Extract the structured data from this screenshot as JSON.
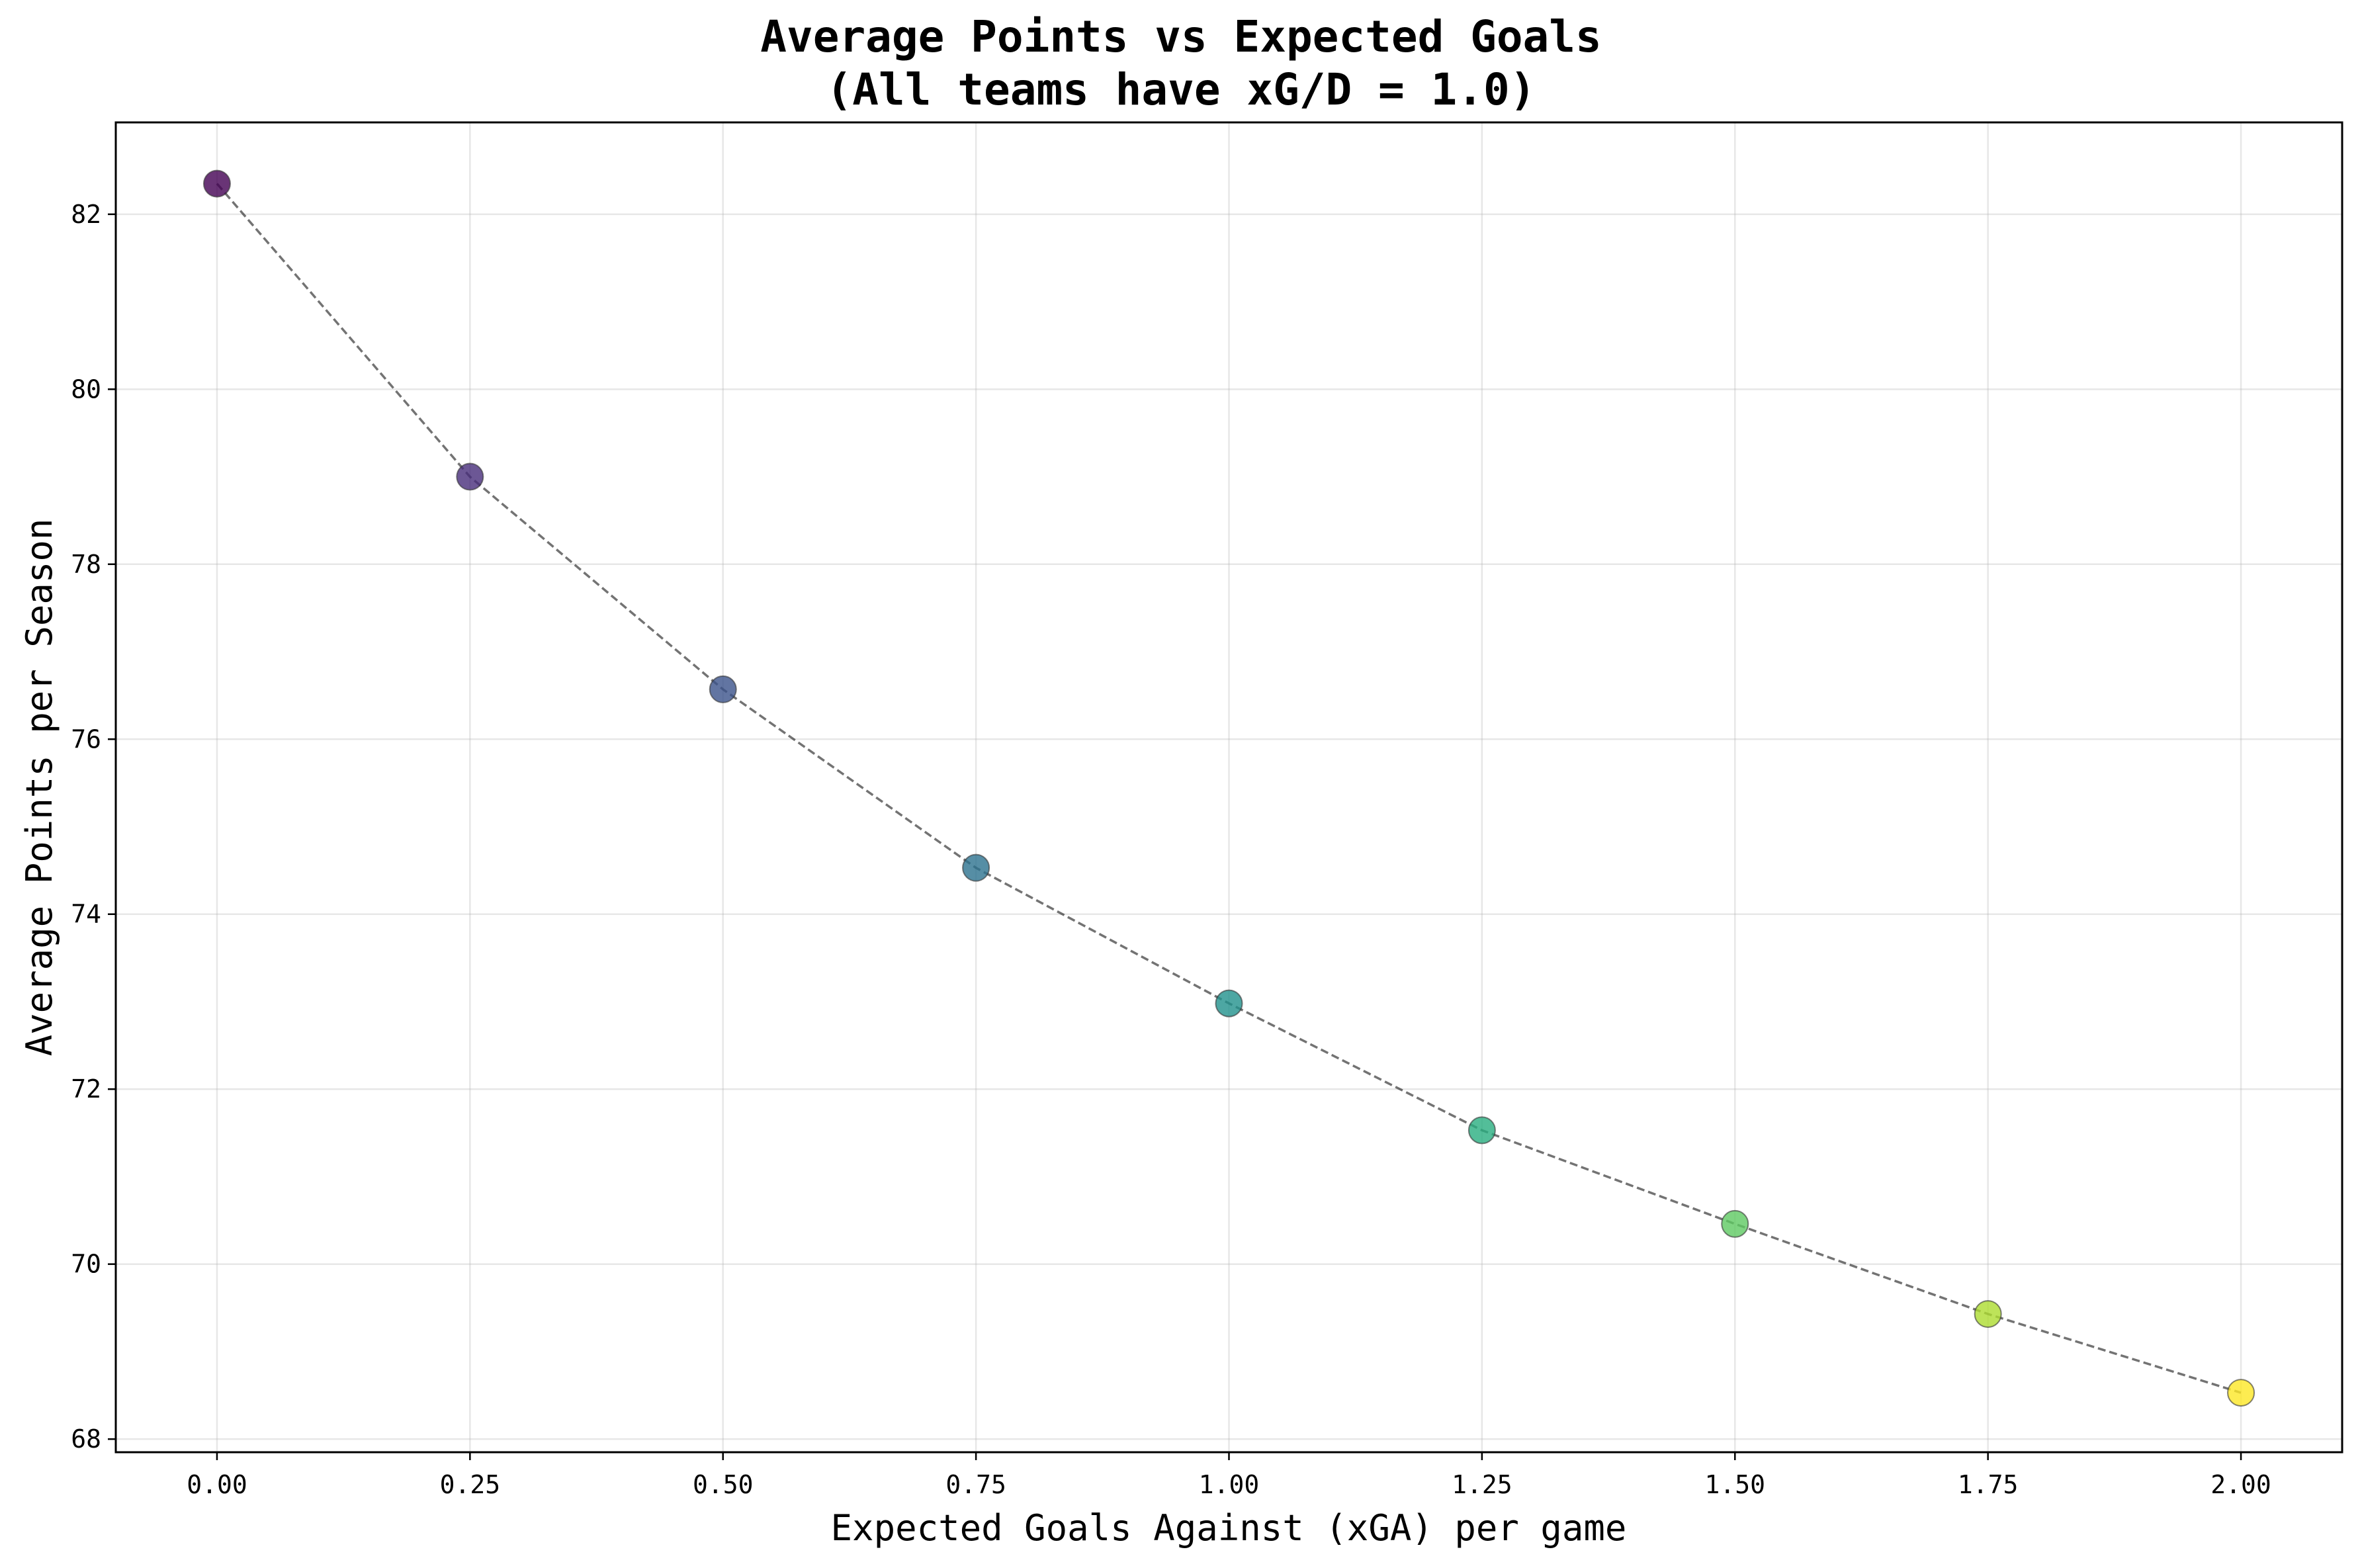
{
  "chart_data": {
    "type": "scatter",
    "title_line1": "Average Points vs Expected Goals",
    "title_line2": "(All teams have xG/D = 1.0)",
    "xlabel": "Expected Goals Against (xGA) per game",
    "ylabel": "Average Points per Season",
    "xlim": [
      -0.1,
      2.1
    ],
    "ylim": [
      67.85,
      83.05
    ],
    "xticks": [
      "0.00",
      "0.25",
      "0.50",
      "0.75",
      "1.00",
      "1.25",
      "1.50",
      "1.75",
      "2.00"
    ],
    "yticks": [
      "68",
      "70",
      "72",
      "74",
      "76",
      "78",
      "80",
      "82"
    ],
    "grid": true,
    "connector": "dashed gray line through points",
    "colormap": "viridis",
    "x": [
      0.0,
      0.25,
      0.5,
      0.75,
      1.0,
      1.25,
      1.5,
      1.75,
      2.0
    ],
    "y": [
      82.35,
      79.0,
      76.57,
      74.53,
      72.98,
      71.53,
      70.46,
      69.43,
      68.53
    ],
    "colors": [
      "#440154",
      "#472d7b",
      "#3b528b",
      "#2c728e",
      "#21918c",
      "#28ae80",
      "#5ec962",
      "#addc30",
      "#fde725"
    ]
  }
}
